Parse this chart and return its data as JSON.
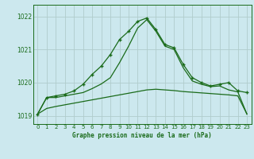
{
  "title": "Graphe pression niveau de la mer (hPa)",
  "background_color": "#cce8ee",
  "grid_color": "#b0cccc",
  "line_color": "#1a6b1a",
  "xlim": [
    -0.5,
    23.5
  ],
  "ylim": [
    1018.75,
    1022.35
  ],
  "yticks": [
    1019,
    1020,
    1021,
    1022
  ],
  "xticks": [
    0,
    1,
    2,
    3,
    4,
    5,
    6,
    7,
    8,
    9,
    10,
    11,
    12,
    13,
    14,
    15,
    16,
    17,
    18,
    19,
    20,
    21,
    22,
    23
  ],
  "main_x": [
    0,
    1,
    2,
    3,
    4,
    5,
    6,
    7,
    8,
    9,
    10,
    11,
    12,
    13,
    14,
    15,
    16,
    17,
    18,
    19,
    20,
    21,
    22,
    23
  ],
  "main_y": [
    1019.05,
    1019.55,
    1019.6,
    1019.65,
    1019.75,
    1019.95,
    1020.25,
    1020.5,
    1020.85,
    1021.3,
    1021.55,
    1021.85,
    1021.95,
    1021.6,
    1021.15,
    1021.05,
    1020.55,
    1020.15,
    1020.0,
    1019.9,
    1019.95,
    1020.0,
    1019.75,
    1019.7
  ],
  "upper_line_x": [
    0,
    1,
    2,
    3,
    4,
    5,
    6,
    7,
    8,
    9,
    10,
    11,
    12,
    13,
    14,
    15,
    16,
    17,
    18,
    19,
    20,
    21,
    22,
    23
  ],
  "upper_line_y": [
    1019.05,
    1019.55,
    1019.55,
    1019.6,
    1019.65,
    1019.7,
    1019.82,
    1019.96,
    1020.15,
    1020.6,
    1021.1,
    1021.65,
    1021.9,
    1021.55,
    1021.1,
    1021.0,
    1020.45,
    1020.05,
    1019.95,
    1019.88,
    1019.9,
    1019.78,
    1019.72,
    1019.05
  ],
  "lower_line_x": [
    0,
    1,
    2,
    3,
    4,
    5,
    6,
    7,
    8,
    9,
    10,
    11,
    12,
    13,
    14,
    15,
    16,
    17,
    18,
    19,
    20,
    21,
    22,
    23
  ],
  "lower_line_y": [
    1019.05,
    1019.22,
    1019.28,
    1019.33,
    1019.38,
    1019.43,
    1019.48,
    1019.53,
    1019.58,
    1019.63,
    1019.68,
    1019.73,
    1019.78,
    1019.8,
    1019.78,
    1019.76,
    1019.73,
    1019.71,
    1019.69,
    1019.67,
    1019.65,
    1019.63,
    1019.6,
    1019.05
  ]
}
